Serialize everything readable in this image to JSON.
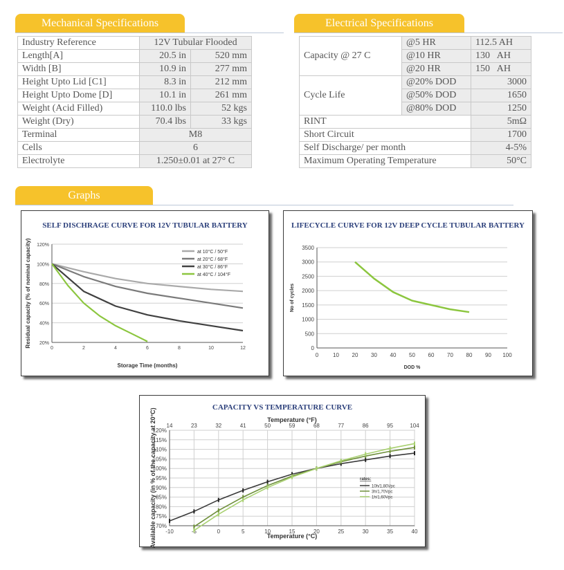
{
  "mechanical": {
    "title": "Mechanical Specifications",
    "rows": [
      {
        "label": "Industry Reference",
        "value": "12V Tubular Flooded"
      },
      {
        "label": "Length[A]",
        "v1": "20.5 in",
        "v2": "520 mm"
      },
      {
        "label": "Width [B]",
        "v1": "10.9 in",
        "v2": "277 mm"
      },
      {
        "label": "Height Upto Lid [C1]",
        "v1": "8.3 in",
        "v2": "212 mm"
      },
      {
        "label": "Height Upto Dome [D]",
        "v1": "10.1 in",
        "v2": "261 mm"
      },
      {
        "label": "Weight (Acid Filled)",
        "v1": "110.0 lbs",
        "v2": "52 kgs"
      },
      {
        "label": "Weight (Dry)",
        "v1": "70.4 lbs",
        "v2": "33 kgs"
      },
      {
        "label": "Terminal",
        "value": "M8"
      },
      {
        "label": "Cells",
        "value": "6"
      },
      {
        "label": "Electrolyte",
        "value": "1.250±0.01 at 27° C"
      }
    ]
  },
  "electrical": {
    "title": "Electrical Specifications",
    "capacity_label": "Capacity @ 27 C",
    "capacity_rows": [
      {
        "rate": "@5 HR",
        "value": "112.5 AH"
      },
      {
        "rate": "@10 HR",
        "value": "130   AH"
      },
      {
        "rate": "@20 HR",
        "value": "150   AH"
      }
    ],
    "cycle_label": "Cycle Life",
    "cycle_rows": [
      {
        "dod": "@20% DOD",
        "value": "3000"
      },
      {
        "dod": "@50% DOD",
        "value": "1650"
      },
      {
        "dod": "@80% DOD",
        "value": "1250"
      }
    ],
    "other_rows": [
      {
        "label": "RINT",
        "value": "5mΩ"
      },
      {
        "label": "Short Circuit",
        "value": "1700"
      },
      {
        "label": "Self Discharge/ per month",
        "value": "4-5%"
      },
      {
        "label": "Maximum Operating Temperature",
        "value": "50°C"
      }
    ]
  },
  "graphs_title": "Graphs",
  "chart_data": [
    {
      "type": "line",
      "title": "SELF DISCHRAGE CURVE FOR 12V TUBULAR BATTERY",
      "xlabel": "Storage Time (months)",
      "ylabel": "Residual capacity (% of nominal capacity)",
      "xlim": [
        0,
        12
      ],
      "ylim": [
        20,
        120
      ],
      "xticks": [
        "0",
        "2",
        "4",
        "6",
        "8",
        "10",
        "12"
      ],
      "yticks": [
        "20%",
        "40%",
        "60%",
        "80%",
        "100%",
        "120%"
      ],
      "legend_position": "top-right",
      "grid": true,
      "series": [
        {
          "name": "at 10°C / 50°F",
          "color": "#a9a9a9",
          "x": [
            0,
            2,
            4,
            6,
            8,
            10,
            12
          ],
          "y": [
            100,
            92,
            85,
            80,
            77,
            74,
            72
          ]
        },
        {
          "name": "at 20°C / 68°F",
          "color": "#7a7a7a",
          "x": [
            0,
            2,
            4,
            6,
            8,
            10,
            12
          ],
          "y": [
            100,
            87,
            77,
            70,
            65,
            60,
            55
          ]
        },
        {
          "name": "at 30°C / 86°F",
          "color": "#404040",
          "x": [
            0,
            2,
            4,
            6,
            8,
            10,
            12
          ],
          "y": [
            100,
            72,
            57,
            48,
            42,
            37,
            32
          ]
        },
        {
          "name": "at 40°C / 104°F",
          "color": "#8cc63f",
          "x": [
            0,
            1,
            2,
            3,
            4,
            5,
            6
          ],
          "y": [
            100,
            78,
            60,
            47,
            37,
            29,
            21
          ]
        }
      ]
    },
    {
      "type": "line",
      "title": "LIFECYCLE CURVE FOR 12V DEEP CYCLE TUBULAR BATTERY",
      "xlabel": "DOD %",
      "ylabel": "No of cycles",
      "xlim": [
        0,
        100
      ],
      "ylim": [
        0,
        3500
      ],
      "xticks": [
        "0",
        "10",
        "20",
        "30",
        "40",
        "50",
        "60",
        "70",
        "80",
        "90",
        "100"
      ],
      "yticks": [
        "0",
        "500",
        "1000",
        "1500",
        "2000",
        "2500",
        "3000",
        "3500"
      ],
      "grid": true,
      "series": [
        {
          "color": "#8cc63f",
          "x": [
            20,
            30,
            40,
            50,
            60,
            70,
            80
          ],
          "y": [
            3000,
            2420,
            1950,
            1650,
            1500,
            1350,
            1250
          ]
        }
      ]
    },
    {
      "type": "line",
      "title": "CAPACITY VS TEMPERATURE CURVE",
      "xlabel": "Temperature (°C)",
      "x2label": "Temperature (°F)",
      "ylabel": "Available capacity (in % of the capacity at 20°C)",
      "xlim": [
        -10,
        40
      ],
      "ylim": [
        70,
        120
      ],
      "xticks": [
        "-10",
        "-5",
        "0",
        "5",
        "10",
        "15",
        "20",
        "25",
        "30",
        "35",
        "40"
      ],
      "x2ticks": [
        "14",
        "23",
        "32",
        "41",
        "50",
        "59",
        "68",
        "77",
        "86",
        "95",
        "104"
      ],
      "yticks": [
        "70%",
        "75%",
        "80%",
        "85%",
        "90%",
        "95%",
        "100%",
        "105%",
        "110%",
        "115%",
        "120%"
      ],
      "legend_title": "rates:",
      "legend_position": "right",
      "grid": true,
      "series": [
        {
          "name": "10h/1,80Vpc",
          "color": "#3a3a3a",
          "x": [
            -10,
            -5,
            0,
            5,
            10,
            15,
            20,
            25,
            30,
            35,
            40
          ],
          "y": [
            72.5,
            77.5,
            83.5,
            88.5,
            93,
            97,
            100,
            102.5,
            104.5,
            106.5,
            108
          ]
        },
        {
          "name": "3h/1,70Vpc",
          "color": "#6e8f3a",
          "x": [
            -5,
            0,
            5,
            10,
            15,
            20,
            25,
            30,
            35,
            40
          ],
          "y": [
            69.5,
            78,
            85,
            91,
            96,
            100,
            103.5,
            106.5,
            109,
            111
          ]
        },
        {
          "name": "1h/1,60Vpc",
          "color": "#a8d070",
          "x": [
            -5,
            0,
            5,
            10,
            15,
            20,
            25,
            30,
            35,
            40
          ],
          "y": [
            67.5,
            76,
            83.5,
            90,
            95.5,
            100,
            104,
            107.5,
            110.5,
            113
          ]
        }
      ]
    }
  ]
}
